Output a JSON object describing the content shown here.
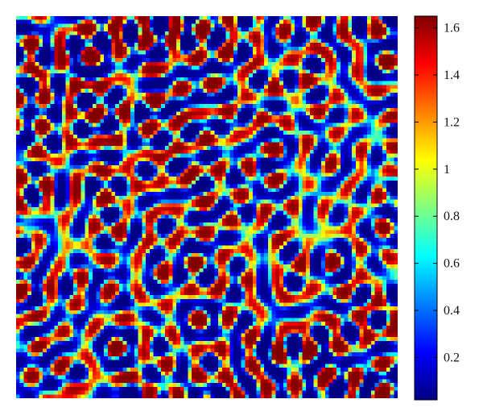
{
  "chart_data": {
    "type": "heatmap",
    "title": "",
    "xlabel": "",
    "ylabel": "",
    "colormap": "jet",
    "color_range": [
      0.02,
      1.65
    ],
    "colorbar": {
      "ticks": [
        0.2,
        0.4,
        0.6,
        0.8,
        1,
        1.2,
        1.4,
        1.6
      ],
      "tick_labels": [
        "0.2",
        "0.4",
        "0.6",
        "0.8",
        "1",
        "1.2",
        "1.4",
        "1.6"
      ],
      "position": "right"
    },
    "pattern": "Turing-type labyrinthine spots and stripes",
    "grid": false,
    "axes_ticks_shown": false
  }
}
